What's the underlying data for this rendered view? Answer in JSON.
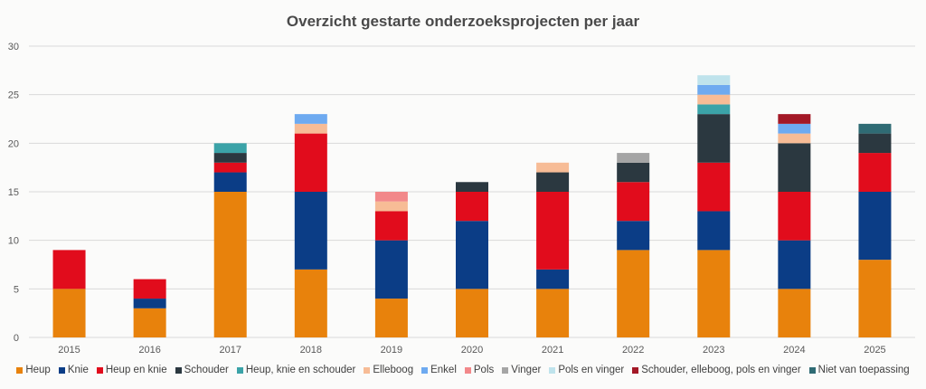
{
  "chart_data": {
    "type": "bar",
    "stacked": true,
    "title": "Overzicht gestarte onderzoeksprojecten per jaar",
    "xlabel": "",
    "ylabel": "",
    "ylim": [
      0,
      30
    ],
    "yticks": [
      0,
      5,
      10,
      15,
      20,
      25,
      30
    ],
    "grid": true,
    "legend_position": "bottom",
    "categories": [
      "2015",
      "2016",
      "2017",
      "2018",
      "2019",
      "2020",
      "2021",
      "2022",
      "2023",
      "2024",
      "2025"
    ],
    "series": [
      {
        "name": "Heup",
        "color": "#e8820c",
        "values": [
          5,
          3,
          15,
          7,
          4,
          5,
          5,
          9,
          9,
          5,
          8
        ]
      },
      {
        "name": "Knie",
        "color": "#0b3d86",
        "values": [
          0,
          1,
          2,
          8,
          6,
          7,
          2,
          3,
          4,
          5,
          7
        ]
      },
      {
        "name": "Heup en knie",
        "color": "#e10c1c",
        "values": [
          4,
          2,
          1,
          6,
          3,
          3,
          8,
          4,
          5,
          5,
          4
        ]
      },
      {
        "name": "Schouder",
        "color": "#2b3840",
        "values": [
          0,
          0,
          1,
          0,
          0,
          1,
          2,
          2,
          5,
          5,
          2
        ]
      },
      {
        "name": "Heup, knie en schouder",
        "color": "#3ba3a8",
        "values": [
          0,
          0,
          1,
          0,
          0,
          0,
          0,
          0,
          1,
          0,
          0
        ]
      },
      {
        "name": "Elleboog",
        "color": "#f7bc96",
        "values": [
          0,
          0,
          0,
          1,
          1,
          0,
          1,
          0,
          1,
          1,
          0
        ]
      },
      {
        "name": "Enkel",
        "color": "#6eaaf0",
        "values": [
          0,
          0,
          0,
          1,
          0,
          0,
          0,
          0,
          1,
          1,
          0
        ]
      },
      {
        "name": "Pols",
        "color": "#f2888a",
        "values": [
          0,
          0,
          0,
          0,
          1,
          0,
          0,
          0,
          0,
          0,
          0
        ]
      },
      {
        "name": "Vinger",
        "color": "#a5a5a5",
        "values": [
          0,
          0,
          0,
          0,
          0,
          0,
          0,
          1,
          0,
          0,
          0
        ]
      },
      {
        "name": "Pols en vinger",
        "color": "#bfe3ec",
        "values": [
          0,
          0,
          0,
          0,
          0,
          0,
          0,
          0,
          1,
          0,
          0
        ]
      },
      {
        "name": "Schouder, elleboog, pols en vinger",
        "color": "#a31826",
        "values": [
          0,
          0,
          0,
          0,
          0,
          0,
          0,
          0,
          0,
          1,
          0
        ]
      },
      {
        "name": "Niet van toepassing",
        "color": "#2f6b74",
        "values": [
          0,
          0,
          0,
          0,
          0,
          0,
          0,
          0,
          0,
          0,
          1
        ]
      }
    ]
  }
}
